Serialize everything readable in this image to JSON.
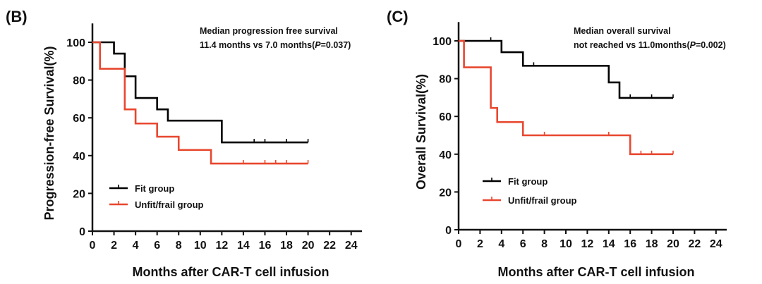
{
  "chart_data": [
    {
      "type": "line",
      "step": true,
      "panel_label": "(B)",
      "xlabel": "Months after CAR-T cell infusion",
      "ylabel": "Progression-free Survival(%)",
      "xlim": [
        0,
        25
      ],
      "ylim": [
        0,
        110
      ],
      "xticks": [
        0,
        2,
        4,
        6,
        8,
        10,
        12,
        14,
        16,
        18,
        20,
        22,
        24
      ],
      "yticks": [
        0,
        20,
        40,
        60,
        80,
        100
      ],
      "annotation": {
        "line1": "Median progression free survival",
        "line2_text": "11.4 months vs 7.0 months(",
        "p_letter": "P",
        "line2_value": "=0.037)"
      },
      "legend_position": "lower-left",
      "series": [
        {
          "name": "Fit group",
          "color": "#000000",
          "x": [
            0,
            2,
            2.6,
            3,
            3.9,
            4,
            5.6,
            6,
            6.8,
            7,
            12,
            20
          ],
          "y": [
            100,
            100,
            94,
            94,
            82,
            82,
            70.5,
            70.5,
            64.5,
            64.5,
            58.5,
            47
          ],
          "steps": [
            [
              0,
              100
            ],
            [
              2,
              94
            ],
            [
              3,
              82
            ],
            [
              4,
              70.5
            ],
            [
              6,
              64.5
            ],
            [
              7,
              58.5
            ],
            [
              12,
              47
            ],
            [
              20,
              47
            ]
          ],
          "censors": [
            15,
            16,
            18,
            20
          ]
        },
        {
          "name": "Unfit/frail group",
          "color": "#e8472f",
          "steps": [
            [
              0,
              100
            ],
            [
              0.7,
              86
            ],
            [
              3,
              64.5
            ],
            [
              4,
              57
            ],
            [
              6,
              50
            ],
            [
              8,
              43
            ],
            [
              11,
              35.8
            ],
            [
              20,
              35.8
            ]
          ],
          "censors": [
            0.7,
            14,
            16,
            17,
            18,
            20
          ]
        }
      ]
    },
    {
      "type": "line",
      "step": true,
      "panel_label": "(C)",
      "xlabel": "Months after CAR-T cell infusion",
      "ylabel": "Overall Survival(%)",
      "xlim": [
        0,
        25
      ],
      "ylim": [
        0,
        110
      ],
      "xticks": [
        0,
        2,
        4,
        6,
        8,
        10,
        12,
        14,
        16,
        18,
        20,
        22,
        24
      ],
      "yticks": [
        0,
        20,
        40,
        60,
        80,
        100
      ],
      "annotation": {
        "line1": "Median overall survival",
        "line2_text": "not reached vs 11.0months(",
        "p_letter": "P",
        "line2_value": "=0.002)"
      },
      "legend_position": "lower-left",
      "series": [
        {
          "name": "Fit group",
          "color": "#000000",
          "steps": [
            [
              0,
              100
            ],
            [
              4,
              94
            ],
            [
              6,
              86.8
            ],
            [
              14,
              78
            ],
            [
              15,
              69.8
            ],
            [
              20,
              69.8
            ]
          ],
          "censors": [
            3,
            7,
            16,
            18,
            20
          ]
        },
        {
          "name": "Unfit/frail group",
          "color": "#e8472f",
          "steps": [
            [
              0,
              100
            ],
            [
              0.5,
              86
            ],
            [
              3,
              64.5
            ],
            [
              3.6,
              57
            ],
            [
              6,
              50
            ],
            [
              16,
              40
            ],
            [
              20,
              40
            ]
          ],
          "censors": [
            8,
            14,
            17,
            18,
            20
          ]
        }
      ]
    }
  ]
}
